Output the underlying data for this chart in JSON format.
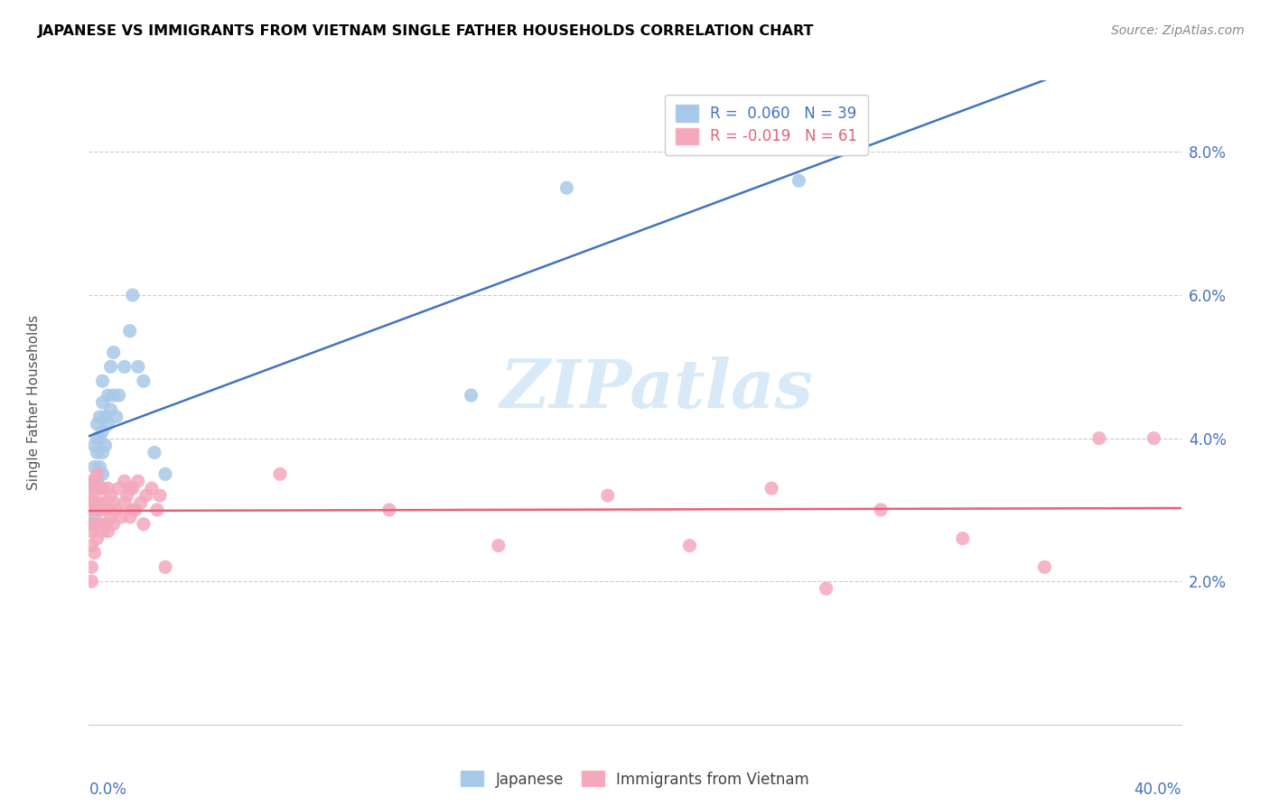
{
  "title": "JAPANESE VS IMMIGRANTS FROM VIETNAM SINGLE FATHER HOUSEHOLDS CORRELATION CHART",
  "source": "Source: ZipAtlas.com",
  "ylabel": "Single Father Households",
  "xmin": 0.0,
  "xmax": 0.4,
  "ymin": 0.0,
  "ymax": 0.09,
  "yticks": [
    0.02,
    0.04,
    0.06,
    0.08
  ],
  "ytick_labels": [
    "2.0%",
    "4.0%",
    "6.0%",
    "8.0%"
  ],
  "legend_r1": "0.060",
  "legend_n1": "39",
  "legend_r2": "-0.019",
  "legend_n2": "61",
  "watermark": "ZIPatlas",
  "blue_scatter_color": "#A8C8E8",
  "pink_scatter_color": "#F4A8BC",
  "blue_line_color": "#4472C4",
  "pink_line_color": "#E8607A",
  "japanese_x": [
    0.001,
    0.001,
    0.001,
    0.002,
    0.002,
    0.002,
    0.002,
    0.003,
    0.003,
    0.003,
    0.003,
    0.004,
    0.004,
    0.004,
    0.005,
    0.005,
    0.005,
    0.005,
    0.005,
    0.006,
    0.006,
    0.007,
    0.007,
    0.008,
    0.008,
    0.009,
    0.009,
    0.01,
    0.011,
    0.013,
    0.015,
    0.016,
    0.018,
    0.02,
    0.024,
    0.028,
    0.14,
    0.175,
    0.26
  ],
  "japanese_y": [
    0.028,
    0.031,
    0.033,
    0.029,
    0.033,
    0.036,
    0.039,
    0.034,
    0.038,
    0.04,
    0.042,
    0.036,
    0.04,
    0.043,
    0.035,
    0.038,
    0.041,
    0.045,
    0.048,
    0.039,
    0.043,
    0.042,
    0.046,
    0.044,
    0.05,
    0.046,
    0.052,
    0.043,
    0.046,
    0.05,
    0.055,
    0.06,
    0.05,
    0.048,
    0.038,
    0.035,
    0.046,
    0.075,
    0.076
  ],
  "vietnam_x": [
    0.001,
    0.001,
    0.001,
    0.001,
    0.001,
    0.001,
    0.001,
    0.002,
    0.002,
    0.002,
    0.002,
    0.003,
    0.003,
    0.003,
    0.003,
    0.004,
    0.004,
    0.004,
    0.005,
    0.005,
    0.005,
    0.006,
    0.006,
    0.007,
    0.007,
    0.007,
    0.008,
    0.008,
    0.009,
    0.009,
    0.01,
    0.011,
    0.012,
    0.013,
    0.013,
    0.014,
    0.015,
    0.015,
    0.016,
    0.016,
    0.017,
    0.018,
    0.019,
    0.02,
    0.021,
    0.023,
    0.025,
    0.026,
    0.028,
    0.07,
    0.11,
    0.15,
    0.19,
    0.22,
    0.25,
    0.27,
    0.29,
    0.32,
    0.35,
    0.37,
    0.39
  ],
  "vietnam_y": [
    0.02,
    0.022,
    0.025,
    0.027,
    0.03,
    0.032,
    0.034,
    0.024,
    0.028,
    0.031,
    0.034,
    0.026,
    0.03,
    0.033,
    0.035,
    0.028,
    0.031,
    0.033,
    0.027,
    0.03,
    0.033,
    0.028,
    0.031,
    0.027,
    0.03,
    0.033,
    0.029,
    0.032,
    0.028,
    0.031,
    0.03,
    0.033,
    0.029,
    0.031,
    0.034,
    0.032,
    0.029,
    0.033,
    0.03,
    0.033,
    0.03,
    0.034,
    0.031,
    0.028,
    0.032,
    0.033,
    0.03,
    0.032,
    0.022,
    0.035,
    0.03,
    0.025,
    0.032,
    0.025,
    0.033,
    0.019,
    0.03,
    0.026,
    0.022,
    0.04,
    0.04
  ]
}
